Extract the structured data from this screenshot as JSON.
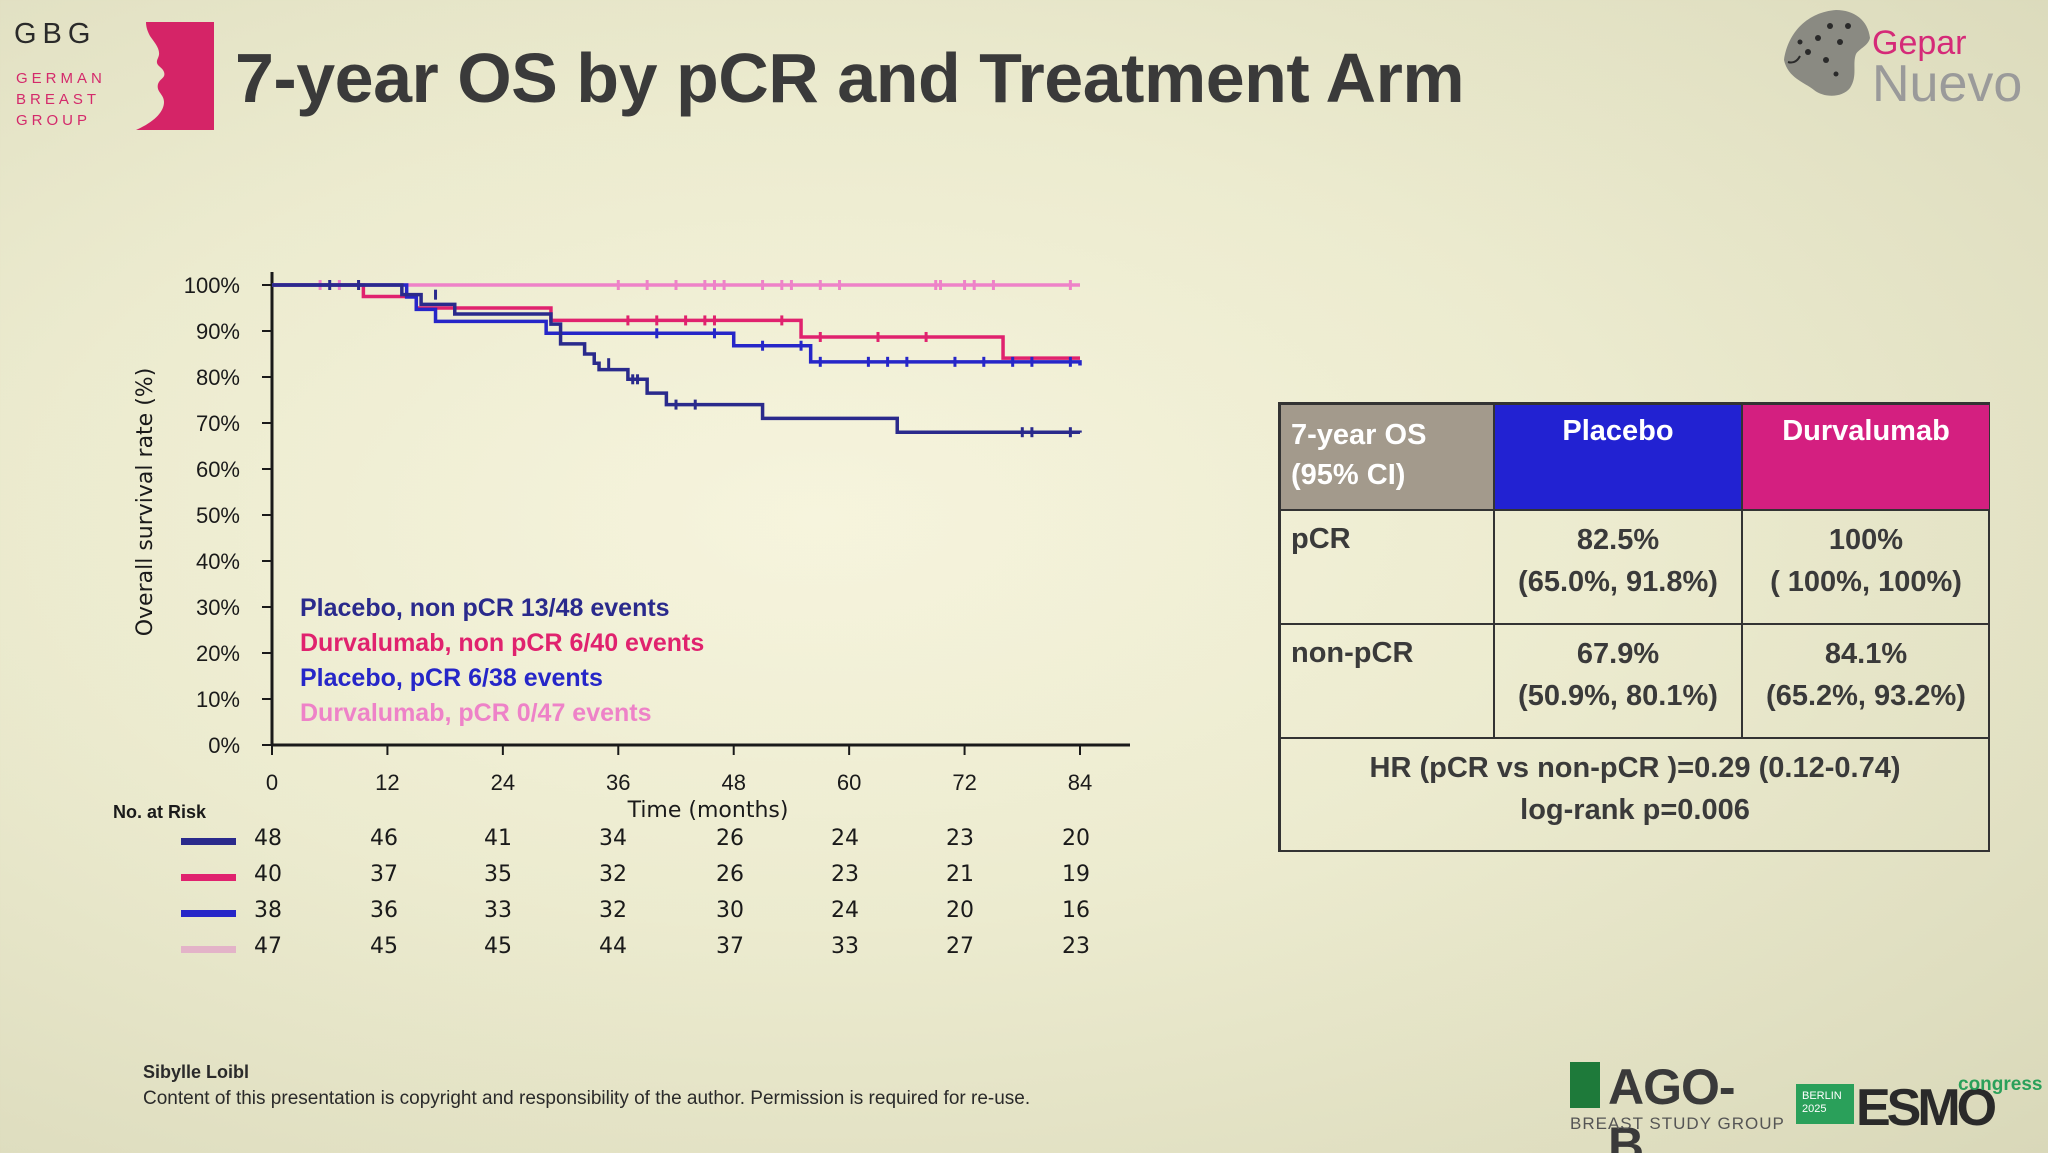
{
  "header": {
    "title": "7-year OS by pCR and Treatment Arm",
    "gbg_logo": {
      "abbr": "GBG",
      "line1": "GERMAN",
      "line2": "BREAST",
      "line3": "GROUP"
    },
    "gepar_logo": {
      "top": "Gepar",
      "bottom": "Nuevo"
    }
  },
  "chart_data": {
    "type": "line",
    "subtype": "kaplan-meier",
    "xlabel": "Time (months)",
    "ylabel": "Overall survival rate (%)",
    "xlim": [
      0,
      84
    ],
    "ylim": [
      0,
      100
    ],
    "x_ticks": [
      "0",
      "12",
      "24",
      "36",
      "48",
      "60",
      "72",
      "84"
    ],
    "y_ticks": [
      "0%",
      "10%",
      "20%",
      "30%",
      "40%",
      "50%",
      "60%",
      "70%",
      "80%",
      "90%",
      "100%"
    ],
    "series": [
      {
        "name": "Placebo, non pCR 13/48 events",
        "color": "#2a2a8c",
        "steps": [
          [
            0,
            100
          ],
          [
            13.5,
            97.9
          ],
          [
            15.5,
            95.8
          ],
          [
            19,
            93.7
          ],
          [
            29,
            91.5
          ],
          [
            30,
            87.2
          ],
          [
            32.5,
            85
          ],
          [
            33.5,
            83
          ],
          [
            34,
            81.6
          ],
          [
            37,
            79.5
          ],
          [
            39,
            76.5
          ],
          [
            41,
            74
          ],
          [
            51,
            71
          ],
          [
            65,
            68
          ],
          [
            84,
            67.9
          ]
        ],
        "censors": [
          [
            6,
            100
          ],
          [
            9,
            100
          ],
          [
            17,
            97.9
          ],
          [
            35,
            83
          ],
          [
            37.5,
            79.5
          ],
          [
            38,
            79.5
          ],
          [
            42,
            74
          ],
          [
            44,
            74
          ],
          [
            78,
            68
          ],
          [
            79,
            68
          ],
          [
            83,
            68
          ]
        ]
      },
      {
        "name": "Durvalumab, non pCR 6/40 events",
        "color": "#e0226e",
        "steps": [
          [
            0,
            100
          ],
          [
            9.5,
            97.5
          ],
          [
            15,
            95
          ],
          [
            29,
            92.3
          ],
          [
            55,
            88.7
          ],
          [
            76,
            84.1
          ],
          [
            84,
            84.1
          ]
        ],
        "censors": [
          [
            37,
            92.3
          ],
          [
            40,
            92.3
          ],
          [
            43,
            92.3
          ],
          [
            45,
            92.3
          ],
          [
            46,
            92.3
          ],
          [
            53,
            92.3
          ],
          [
            57,
            88.7
          ],
          [
            63,
            88.7
          ],
          [
            68,
            88.7
          ]
        ]
      },
      {
        "name": "Placebo, pCR 6/38 events",
        "color": "#2626c8",
        "steps": [
          [
            0,
            100
          ],
          [
            12,
            100
          ],
          [
            14,
            97.4
          ],
          [
            15,
            94.7
          ],
          [
            17,
            92.1
          ],
          [
            28.5,
            89.5
          ],
          [
            48,
            86.8
          ],
          [
            56,
            83.3
          ],
          [
            84,
            82.5
          ]
        ],
        "censors": [
          [
            40,
            89.5
          ],
          [
            46,
            89.5
          ],
          [
            51,
            86.8
          ],
          [
            55,
            86.8
          ],
          [
            57,
            83.3
          ],
          [
            62,
            83.3
          ],
          [
            64,
            83.3
          ],
          [
            66,
            83.3
          ],
          [
            71,
            83.3
          ],
          [
            74,
            83.3
          ],
          [
            77,
            83.3
          ],
          [
            79,
            83.3
          ],
          [
            83,
            83.3
          ]
        ]
      },
      {
        "name": "Durvalumab, pCR 0/47 events",
        "color": "#ee82c8",
        "steps": [
          [
            0,
            100
          ],
          [
            84,
            100
          ]
        ],
        "censors": [
          [
            5,
            100
          ],
          [
            7,
            100
          ],
          [
            9,
            100
          ],
          [
            36,
            100
          ],
          [
            39,
            100
          ],
          [
            42,
            100
          ],
          [
            45,
            100
          ],
          [
            46,
            100
          ],
          [
            47,
            100
          ],
          [
            51,
            100
          ],
          [
            53,
            100
          ],
          [
            54,
            100
          ],
          [
            57,
            100
          ],
          [
            59,
            100
          ],
          [
            69,
            100
          ],
          [
            69.5,
            100
          ],
          [
            72,
            100
          ],
          [
            73,
            100
          ],
          [
            75,
            100
          ],
          [
            83,
            100
          ]
        ]
      }
    ]
  },
  "risk_table": {
    "title": "No. at Risk",
    "times": [
      "0",
      "12",
      "24",
      "36",
      "48",
      "60",
      "72",
      "84"
    ],
    "rows": [
      {
        "color": "#2a2a8c",
        "values": [
          "48",
          "46",
          "41",
          "34",
          "26",
          "24",
          "23",
          "20"
        ]
      },
      {
        "color": "#e0226e",
        "values": [
          "40",
          "37",
          "35",
          "32",
          "26",
          "23",
          "21",
          "19"
        ]
      },
      {
        "color": "#2626c8",
        "values": [
          "38",
          "36",
          "33",
          "32",
          "30",
          "24",
          "20",
          "16"
        ]
      },
      {
        "color": "#e3b3c8",
        "values": [
          "47",
          "45",
          "45",
          "44",
          "37",
          "33",
          "27",
          "23"
        ]
      }
    ]
  },
  "os_table": {
    "header_left": "7-year OS (95% CI)",
    "header_placebo": "Placebo",
    "header_durvalumab": "Durvalumab",
    "rows": [
      {
        "label": "pCR",
        "placebo": "82.5%",
        "placebo_ci": "(65.0%, 91.8%)",
        "durvalumab": "100%",
        "durvalumab_ci": "( 100%, 100%)"
      },
      {
        "label": "non-pCR",
        "placebo": "67.9%",
        "placebo_ci": "(50.9%, 80.1%)",
        "durvalumab": "84.1%",
        "durvalumab_ci": "(65.2%, 93.2%)"
      }
    ],
    "footer_line1": "HR (pCR vs non-pCR )=0.29 (0.12-0.74)",
    "footer_line2": "log-rank p=0.006"
  },
  "footer": {
    "author": "Sibylle Loibl",
    "copyright": "Content of this presentation is copyright and responsibility of the author. Permission is required for re-use.",
    "ago": {
      "name": "AGO-B",
      "sub": "BREAST STUDY GROUP"
    },
    "esmo": {
      "city": "BERLIN",
      "year": "2025",
      "name": "ESMO",
      "suffix": "congress"
    }
  }
}
